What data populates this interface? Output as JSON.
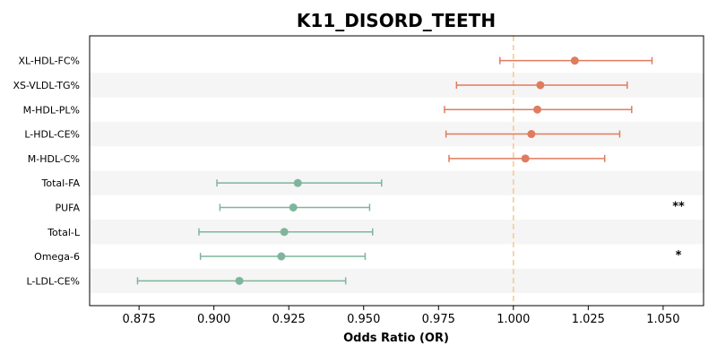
{
  "chart_data": {
    "type": "forest",
    "title": "K11_DISORD_TEETH",
    "xlabel": "Odds Ratio (OR)",
    "ylabel": "",
    "xlim": [
      0.8585,
      1.0635
    ],
    "xticks": [
      "0.875",
      "0.900",
      "0.925",
      "0.950",
      "0.975",
      "1.000",
      "1.025",
      "1.050"
    ],
    "reference_line": 1.0,
    "grid": false,
    "alternating_row_bands": true,
    "colors": {
      "positive": "#e07b5f",
      "negative": "#7fb59c",
      "reference": "#f5c98b",
      "band": "#f5f5f5"
    },
    "rows": [
      {
        "label": "XL-HDL-FC%",
        "or": 1.0205,
        "ci_low": 0.9955,
        "ci_high": 1.0463,
        "sig": "",
        "group": "positive"
      },
      {
        "label": "XS-VLDL-TG%",
        "or": 1.009,
        "ci_low": 0.981,
        "ci_high": 1.038,
        "sig": "",
        "group": "positive"
      },
      {
        "label": "M-HDL-PL%",
        "or": 1.008,
        "ci_low": 0.977,
        "ci_high": 1.0395,
        "sig": "",
        "group": "positive"
      },
      {
        "label": "L-HDL-CE%",
        "or": 1.006,
        "ci_low": 0.9775,
        "ci_high": 1.0355,
        "sig": "",
        "group": "positive"
      },
      {
        "label": "M-HDL-C%",
        "or": 1.004,
        "ci_low": 0.9785,
        "ci_high": 1.0305,
        "sig": "",
        "group": "positive"
      },
      {
        "label": "Total-FA",
        "or": 0.928,
        "ci_low": 0.901,
        "ci_high": 0.956,
        "sig": "",
        "group": "negative"
      },
      {
        "label": "PUFA",
        "or": 0.9265,
        "ci_low": 0.902,
        "ci_high": 0.952,
        "sig": "**",
        "group": "negative"
      },
      {
        "label": "Total-L",
        "or": 0.9235,
        "ci_low": 0.895,
        "ci_high": 0.953,
        "sig": "",
        "group": "negative"
      },
      {
        "label": "Omega-6",
        "or": 0.9225,
        "ci_low": 0.8955,
        "ci_high": 0.9505,
        "sig": "*",
        "group": "negative"
      },
      {
        "label": "L-LDL-CE%",
        "or": 0.9085,
        "ci_low": 0.8745,
        "ci_high": 0.944,
        "sig": "",
        "group": "negative"
      }
    ]
  }
}
